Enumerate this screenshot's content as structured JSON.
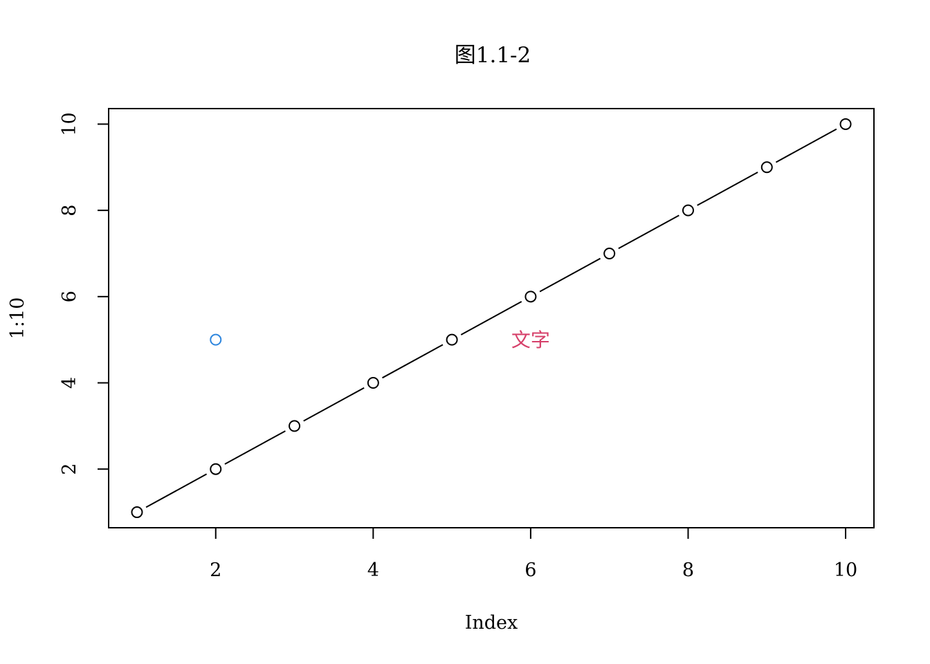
{
  "chart_data": {
    "type": "line",
    "title": "图1.1-2",
    "xlabel": "Index",
    "ylabel": "1:10",
    "xlim": [
      0.64,
      10.36
    ],
    "ylim": [
      0.64,
      10.36
    ],
    "x_ticks": [
      2,
      4,
      6,
      8,
      10
    ],
    "y_ticks": [
      2,
      4,
      6,
      8,
      10
    ],
    "x_tick_labels": [
      "2",
      "4",
      "6",
      "8",
      "10"
    ],
    "y_tick_labels": [
      "2",
      "4",
      "6",
      "8",
      "10"
    ],
    "grid": false,
    "series": [
      {
        "style": "line+points",
        "marker": "open-circle",
        "color": "#000000",
        "x": [
          1,
          2,
          3,
          4,
          5,
          6,
          7,
          8,
          9,
          10
        ],
        "y": [
          1,
          2,
          3,
          4,
          5,
          6,
          7,
          8,
          9,
          10
        ]
      }
    ],
    "extra_points": [
      {
        "x": 2,
        "y": 5,
        "marker": "open-circle",
        "color": "#2e86de"
      }
    ],
    "annotations": [
      {
        "text": "文字",
        "x": 6,
        "y": 5,
        "color": "#d6406a"
      }
    ]
  }
}
